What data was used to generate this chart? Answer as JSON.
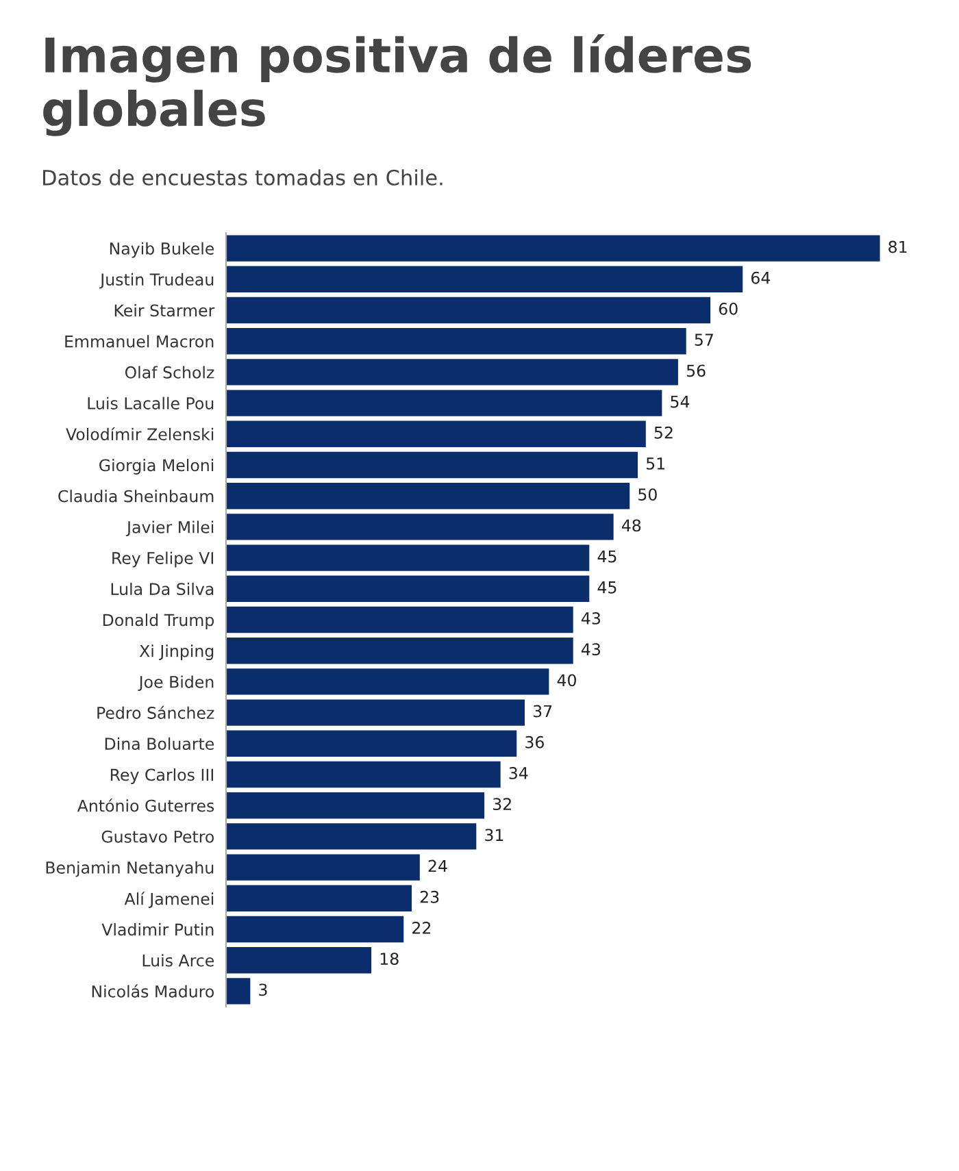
{
  "chart_data": {
    "type": "bar",
    "orientation": "horizontal",
    "title": "Imagen positiva de líderes globales",
    "subtitle": "Datos de encuestas tomadas en Chile.",
    "categories": [
      "Nayib Bukele",
      "Justin Trudeau",
      "Keir Starmer",
      "Emmanuel Macron",
      "Olaf Scholz",
      "Luis Lacalle Pou",
      "Volodímir Zelenski",
      "Giorgia Meloni",
      "Claudia Sheinbaum",
      "Javier Milei",
      "Rey Felipe VI",
      "Lula Da Silva",
      "Donald Trump",
      "Xi Jinping",
      "Joe Biden",
      "Pedro Sánchez",
      "Dina Boluarte",
      "Rey Carlos III",
      "António Guterres",
      "Gustavo Petro",
      "Benjamin Netanyahu",
      "Alí Jamenei",
      "Vladimir Putin",
      "Luis Arce",
      "Nicolás Maduro"
    ],
    "values": [
      81,
      64,
      60,
      57,
      56,
      54,
      52,
      51,
      50,
      48,
      45,
      45,
      43,
      43,
      40,
      37,
      36,
      34,
      32,
      31,
      24,
      23,
      22,
      18,
      3
    ],
    "color": "#0c2d6b",
    "data_labels": true,
    "grid": false,
    "legend": false
  }
}
